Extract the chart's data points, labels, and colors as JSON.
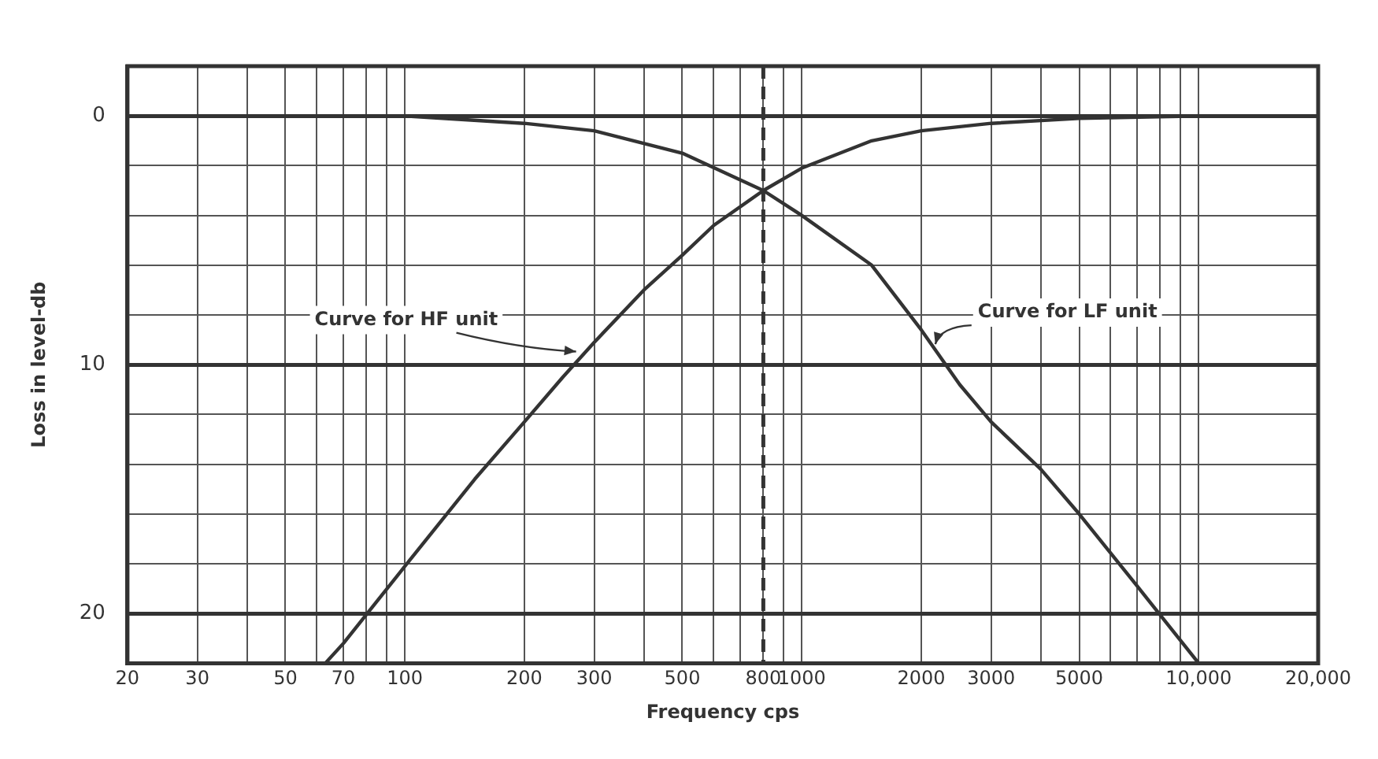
{
  "chart_data": {
    "type": "line",
    "xlabel": "Frequency cps",
    "ylabel": "Loss in level-db",
    "log": "x",
    "grid": true,
    "legend": false,
    "marker": "none",
    "line_style": "solid",
    "xlim": [
      20,
      20000
    ],
    "ylim": [
      22,
      -2
    ],
    "xticks": [
      20,
      30,
      {
        "value": 40,
        "label": null
      },
      50,
      {
        "value": 60,
        "label": null
      },
      70,
      {
        "value": 80,
        "label": null
      },
      {
        "value": 90,
        "label": null
      },
      100,
      200,
      300,
      {
        "value": 400,
        "label": null
      },
      500,
      {
        "value": 600,
        "label": null
      },
      {
        "value": 700,
        "label": null
      },
      800,
      {
        "value": 900,
        "label": null
      },
      1000,
      2000,
      3000,
      {
        "value": 4000,
        "label": null
      },
      5000,
      {
        "value": 6000,
        "label": null
      },
      {
        "value": 7000,
        "label": null
      },
      {
        "value": 8000,
        "label": null
      },
      {
        "value": 9000,
        "label": null
      },
      {
        "value": 10000,
        "label": "10,000"
      },
      {
        "value": 20000,
        "label": "20,000"
      }
    ],
    "yticks": [
      {
        "value": -2,
        "label": null
      },
      0,
      {
        "value": 2,
        "label": null
      },
      {
        "value": 4,
        "label": null
      },
      {
        "value": 6,
        "label": null
      },
      {
        "value": 8,
        "label": null
      },
      10,
      {
        "value": 12,
        "label": null
      },
      {
        "value": 14,
        "label": null
      },
      {
        "value": 16,
        "label": null
      },
      {
        "value": 18,
        "label": null
      },
      20,
      {
        "value": 22,
        "label": null
      }
    ],
    "series": [
      {
        "color": "#333333",
        "x": [
          63,
          70,
          100,
          150,
          200,
          250,
          300,
          400,
          500,
          600,
          800,
          1000,
          1500,
          2000,
          3000,
          5000,
          10000,
          20000
        ],
        "values": [
          22,
          21.2,
          18.1,
          14.6,
          12.3,
          10.5,
          9.1,
          7,
          5.6,
          4.4,
          3,
          2.1,
          1,
          0.6,
          0.3,
          0.1,
          0,
          0
        ]
      },
      {
        "color": "#333333",
        "x": [
          20,
          100,
          200,
          300,
          500,
          800,
          1000,
          1500,
          2000,
          2500,
          3000,
          4000,
          5000,
          7000,
          10000
        ],
        "values": [
          0,
          0,
          0.3,
          0.6,
          1.5,
          3,
          4,
          6,
          8.6,
          10.8,
          12.3,
          14.2,
          16,
          18.9,
          22
        ]
      }
    ],
    "ref_lines": [
      {
        "axis": "x",
        "value": 800,
        "color": "#333333",
        "line_style": "dashed"
      }
    ],
    "annotations": [
      {
        "text": "Curve for HF unit",
        "x": 280,
        "y": 9.6
      },
      {
        "text": "Curve for LF unit",
        "x": 2150,
        "y": 9.3
      }
    ]
  }
}
